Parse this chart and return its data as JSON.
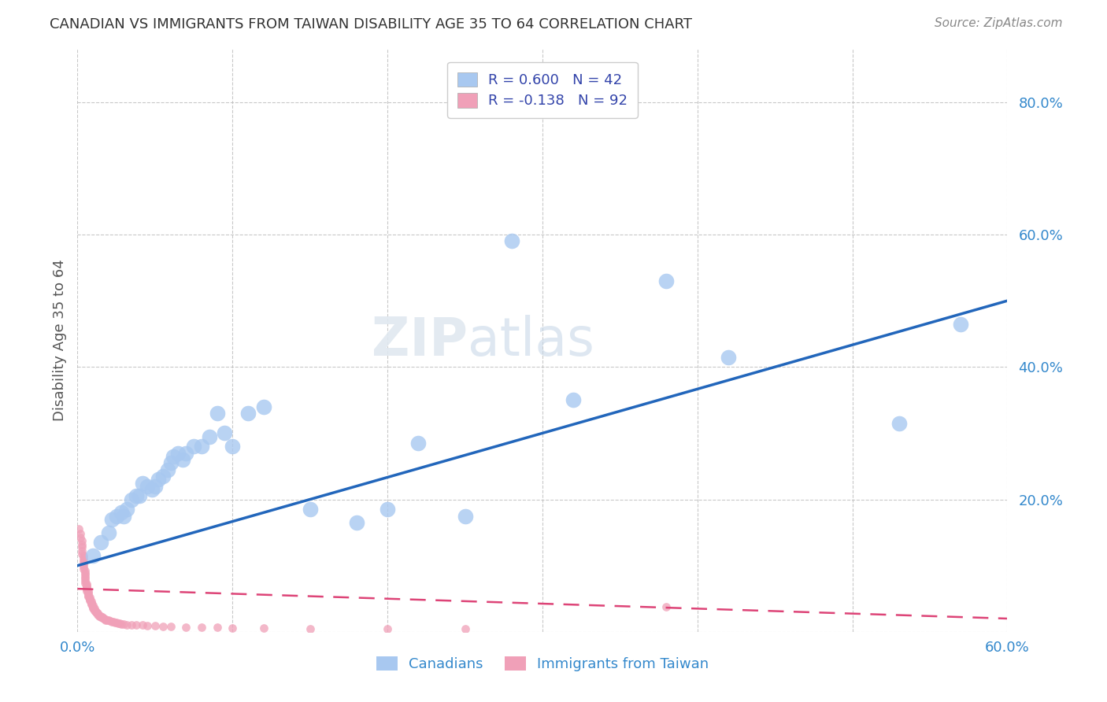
{
  "title": "CANADIAN VS IMMIGRANTS FROM TAIWAN DISABILITY AGE 35 TO 64 CORRELATION CHART",
  "source": "Source: ZipAtlas.com",
  "ylabel": "Disability Age 35 to 64",
  "xlim": [
    0.0,
    0.6
  ],
  "ylim": [
    0.0,
    0.88
  ],
  "canadians_color": "#a8c8f0",
  "taiwan_color": "#f0a0b8",
  "blue_line_color": "#2266bb",
  "pink_line_color": "#dd4477",
  "watermark_zip": "ZIP",
  "watermark_atlas": "atlas",
  "canadians_x": [
    0.01,
    0.015,
    0.02,
    0.022,
    0.025,
    0.028,
    0.03,
    0.032,
    0.035,
    0.038,
    0.04,
    0.042,
    0.045,
    0.048,
    0.05,
    0.052,
    0.055,
    0.058,
    0.06,
    0.062,
    0.065,
    0.068,
    0.07,
    0.075,
    0.08,
    0.085,
    0.09,
    0.095,
    0.1,
    0.11,
    0.12,
    0.15,
    0.18,
    0.2,
    0.22,
    0.25,
    0.28,
    0.32,
    0.38,
    0.42,
    0.53,
    0.57
  ],
  "canadians_y": [
    0.115,
    0.135,
    0.15,
    0.17,
    0.175,
    0.18,
    0.175,
    0.185,
    0.2,
    0.205,
    0.205,
    0.225,
    0.22,
    0.215,
    0.22,
    0.23,
    0.235,
    0.245,
    0.255,
    0.265,
    0.27,
    0.26,
    0.27,
    0.28,
    0.28,
    0.295,
    0.33,
    0.3,
    0.28,
    0.33,
    0.34,
    0.185,
    0.165,
    0.185,
    0.285,
    0.175,
    0.59,
    0.35,
    0.53,
    0.415,
    0.315,
    0.465
  ],
  "taiwan_x": [
    0.001,
    0.002,
    0.002,
    0.003,
    0.003,
    0.003,
    0.003,
    0.003,
    0.004,
    0.004,
    0.004,
    0.004,
    0.004,
    0.004,
    0.004,
    0.005,
    0.005,
    0.005,
    0.005,
    0.005,
    0.005,
    0.005,
    0.006,
    0.006,
    0.006,
    0.006,
    0.006,
    0.006,
    0.007,
    0.007,
    0.007,
    0.007,
    0.007,
    0.008,
    0.008,
    0.008,
    0.008,
    0.009,
    0.009,
    0.009,
    0.009,
    0.01,
    0.01,
    0.01,
    0.01,
    0.011,
    0.011,
    0.011,
    0.012,
    0.012,
    0.012,
    0.013,
    0.013,
    0.013,
    0.014,
    0.014,
    0.015,
    0.015,
    0.016,
    0.016,
    0.017,
    0.017,
    0.018,
    0.018,
    0.019,
    0.02,
    0.021,
    0.022,
    0.023,
    0.024,
    0.025,
    0.026,
    0.027,
    0.028,
    0.03,
    0.032,
    0.035,
    0.038,
    0.042,
    0.045,
    0.05,
    0.055,
    0.06,
    0.07,
    0.08,
    0.09,
    0.1,
    0.12,
    0.15,
    0.2,
    0.25,
    0.38
  ],
  "taiwan_y": [
    0.155,
    0.148,
    0.142,
    0.138,
    0.132,
    0.128,
    0.122,
    0.118,
    0.115,
    0.112,
    0.108,
    0.105,
    0.102,
    0.098,
    0.095,
    0.092,
    0.089,
    0.086,
    0.083,
    0.08,
    0.077,
    0.074,
    0.072,
    0.07,
    0.068,
    0.066,
    0.064,
    0.062,
    0.061,
    0.059,
    0.057,
    0.055,
    0.053,
    0.052,
    0.05,
    0.048,
    0.047,
    0.046,
    0.044,
    0.043,
    0.041,
    0.04,
    0.038,
    0.037,
    0.036,
    0.035,
    0.033,
    0.032,
    0.031,
    0.03,
    0.029,
    0.028,
    0.027,
    0.026,
    0.025,
    0.024,
    0.023,
    0.022,
    0.022,
    0.021,
    0.02,
    0.02,
    0.019,
    0.018,
    0.018,
    0.017,
    0.016,
    0.015,
    0.015,
    0.014,
    0.014,
    0.013,
    0.013,
    0.012,
    0.012,
    0.011,
    0.011,
    0.01,
    0.01,
    0.009,
    0.009,
    0.008,
    0.008,
    0.007,
    0.007,
    0.007,
    0.006,
    0.006,
    0.005,
    0.005,
    0.004,
    0.038
  ],
  "blue_line_x0": 0.0,
  "blue_line_y0": 0.1,
  "blue_line_x1": 0.6,
  "blue_line_y1": 0.5,
  "pink_line_x0": 0.0,
  "pink_line_y0": 0.065,
  "pink_line_x1": 0.6,
  "pink_line_y1": 0.02
}
